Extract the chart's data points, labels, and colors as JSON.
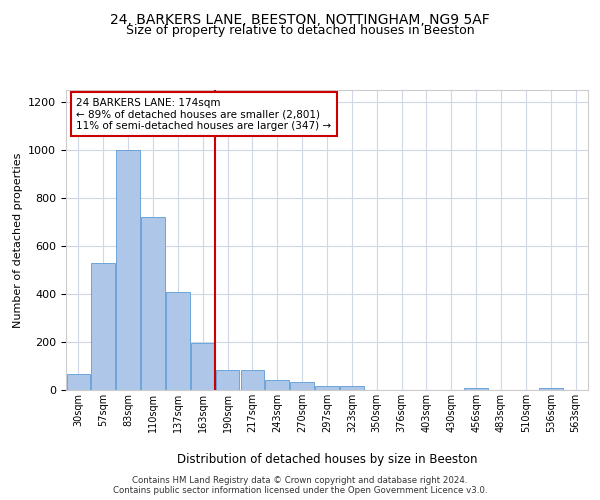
{
  "title_line1": "24, BARKERS LANE, BEESTON, NOTTINGHAM, NG9 5AF",
  "title_line2": "Size of property relative to detached houses in Beeston",
  "xlabel": "Distribution of detached houses by size in Beeston",
  "ylabel": "Number of detached properties",
  "footer_line1": "Contains HM Land Registry data © Crown copyright and database right 2024.",
  "footer_line2": "Contains public sector information licensed under the Open Government Licence v3.0.",
  "bar_labels": [
    "30sqm",
    "57sqm",
    "83sqm",
    "110sqm",
    "137sqm",
    "163sqm",
    "190sqm",
    "217sqm",
    "243sqm",
    "270sqm",
    "297sqm",
    "323sqm",
    "350sqm",
    "376sqm",
    "403sqm",
    "430sqm",
    "456sqm",
    "483sqm",
    "510sqm",
    "536sqm",
    "563sqm"
  ],
  "bar_values": [
    65,
    530,
    1000,
    720,
    410,
    195,
    85,
    85,
    40,
    35,
    18,
    18,
    0,
    0,
    0,
    0,
    10,
    0,
    0,
    10,
    0
  ],
  "bar_color": "#aec6e8",
  "bar_edge_color": "#5b9bd5",
  "vline_color": "#cc0000",
  "vline_x": 5.5,
  "annotation_text": "24 BARKERS LANE: 174sqm\n← 89% of detached houses are smaller (2,801)\n11% of semi-detached houses are larger (347) →",
  "annotation_box_color": "#ffffff",
  "annotation_box_edge": "#cc0000",
  "ylim": [
    0,
    1250
  ],
  "yticks": [
    0,
    200,
    400,
    600,
    800,
    1000,
    1200
  ],
  "bg_color": "#ffffff",
  "grid_color": "#d0d8e8",
  "title_fontsize": 10,
  "subtitle_fontsize": 9
}
